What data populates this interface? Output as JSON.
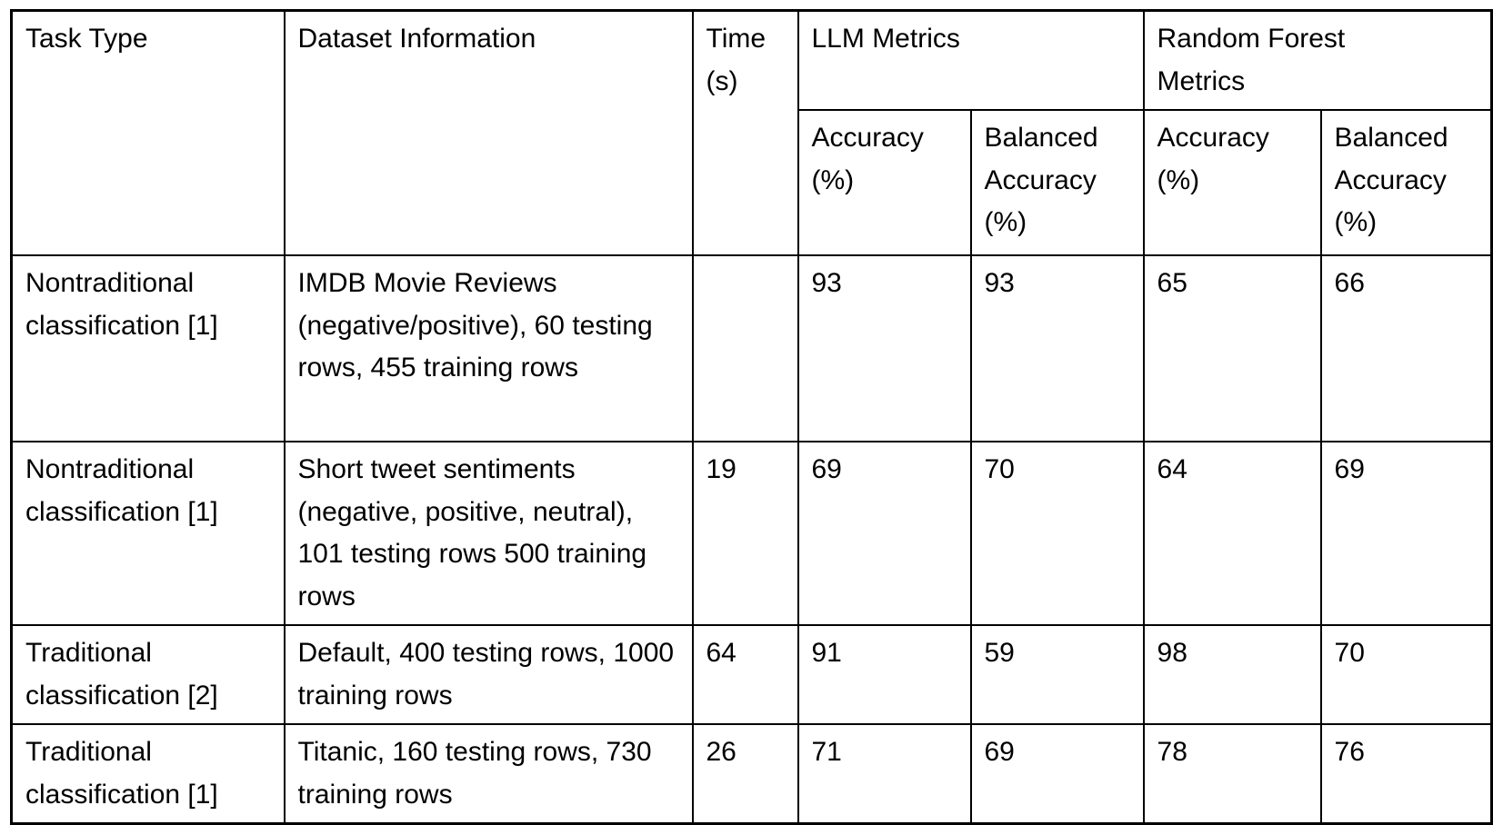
{
  "table": {
    "headers": {
      "task_type": "Task Type",
      "dataset_information": "Dataset Information",
      "time": "Time (s)",
      "llm_metrics_group": "LLM Metrics",
      "random_forest_metrics_group": "Random Forest Metrics",
      "accuracy": "Accuracy (%)",
      "balanced_accuracy": "Balanced Accuracy (%)"
    },
    "rows": [
      {
        "task_type": "Nontraditional classification [1]",
        "dataset_information": "IMDB Movie Reviews (negative/positive), 60 testing rows, 455 training rows",
        "time_s": "",
        "llm_accuracy": "93",
        "llm_balanced_accuracy": "93",
        "rf_accuracy": "65",
        "rf_balanced_accuracy": "66"
      },
      {
        "task_type": "Nontraditional classification [1]",
        "dataset_information": "Short tweet sentiments (negative, positive, neutral), 101 testing rows 500 training rows",
        "time_s": "19",
        "llm_accuracy": "69",
        "llm_balanced_accuracy": "70",
        "rf_accuracy": "64",
        "rf_balanced_accuracy": "69"
      },
      {
        "task_type": "Traditional classification [2]",
        "dataset_information": "Default, 400 testing rows, 1000 training rows",
        "time_s": "64",
        "llm_accuracy": "91",
        "llm_balanced_accuracy": "59",
        "rf_accuracy": "98",
        "rf_balanced_accuracy": "70"
      },
      {
        "task_type": "Traditional classification [1]",
        "dataset_information": "Titanic, 160 testing rows, 730 training rows",
        "time_s": "26",
        "llm_accuracy": "71",
        "llm_balanced_accuracy": "69",
        "rf_accuracy": "78",
        "rf_balanced_accuracy": "76"
      }
    ],
    "colors": {
      "border": "#000000",
      "background": "#ffffff",
      "text": "#000000"
    }
  }
}
